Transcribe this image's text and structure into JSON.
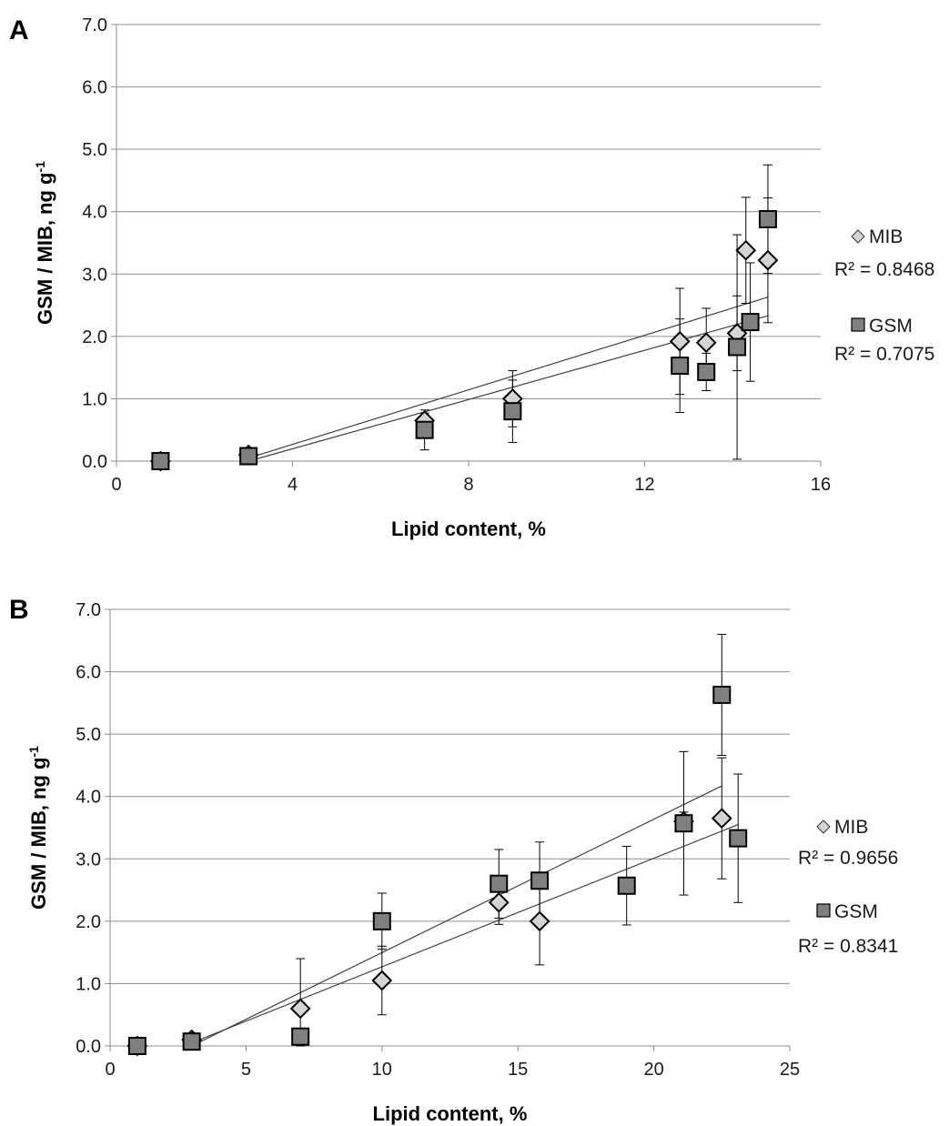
{
  "chart_data": [
    {
      "type": "scatter",
      "panel_label": "A",
      "xlabel": "Lipid content, %",
      "ylabel_main": "GSM / MIB, ng g",
      "ylabel_sup": "-1",
      "xlim": [
        0,
        16
      ],
      "ylim": [
        0,
        7
      ],
      "x_ticks": [
        0,
        4,
        8,
        12,
        16
      ],
      "x_tick_labels": [
        "0",
        "4",
        "8",
        "12",
        "16"
      ],
      "y_ticks": [
        0,
        1,
        2,
        3,
        4,
        5,
        6,
        7
      ],
      "y_tick_labels": [
        "0.0",
        "1.0",
        "2.0",
        "3.0",
        "4.0",
        "5.0",
        "6.0",
        "7.0"
      ],
      "grid": "horizontal",
      "legend_position": "right",
      "series": [
        {
          "name": "MIB",
          "marker": "diamond",
          "color": "#d4d4d4",
          "r2_label": "R² = 0.8468",
          "trendline_x": [
            3,
            14.8
          ],
          "trendline_y": [
            0.05,
            2.63
          ],
          "x": [
            1,
            3,
            7,
            9,
            12.8,
            13.4,
            14.1,
            14.3,
            14.8
          ],
          "y": [
            0,
            0.1,
            0.65,
            1.0,
            1.92,
            1.9,
            2.05,
            3.38,
            3.22
          ],
          "err": [
            0.05,
            0.08,
            0.12,
            0.45,
            0.85,
            0.55,
            0.6,
            0.85,
            1.0
          ]
        },
        {
          "name": "GSM",
          "marker": "square",
          "color": "#7f7f7f",
          "r2_label": "R² = 0.7075",
          "trendline_x": [
            3,
            14.8
          ],
          "trendline_y": [
            0.0,
            2.33
          ],
          "x": [
            1,
            3,
            7,
            9,
            12.8,
            13.4,
            14.1,
            14.4,
            14.8
          ],
          "y": [
            0,
            0.08,
            0.5,
            0.8,
            1.53,
            1.43,
            1.83,
            2.23,
            3.88
          ],
          "err": [
            0.05,
            0.1,
            0.32,
            0.5,
            0.75,
            0.3,
            1.8,
            0.95,
            0.87
          ]
        }
      ]
    },
    {
      "type": "scatter",
      "panel_label": "B",
      "xlabel": "Lipid content, %",
      "ylabel_main": "GSM / MIB, ng g",
      "ylabel_sup": "-1",
      "xlim": [
        0,
        25
      ],
      "ylim": [
        0,
        7
      ],
      "x_ticks": [
        0,
        5,
        10,
        15,
        20,
        25
      ],
      "x_tick_labels": [
        "0",
        "5",
        "10",
        "15",
        "20",
        "25"
      ],
      "y_ticks": [
        0,
        1,
        2,
        3,
        4,
        5,
        6,
        7
      ],
      "y_tick_labels": [
        "0.0",
        "1.0",
        "2.0",
        "3.0",
        "4.0",
        "5.0",
        "6.0",
        "7.0"
      ],
      "grid": "horizontal",
      "legend_position": "right",
      "series": [
        {
          "name": "MIB",
          "marker": "diamond",
          "color": "#d4d4d4",
          "r2_label": "R² = 0.9656",
          "trendline_x": [
            3,
            23.1
          ],
          "trendline_y": [
            0.05,
            3.55
          ],
          "x": [
            1,
            3,
            7,
            10,
            14.3,
            15.8,
            21.1,
            22.5
          ],
          "y": [
            0,
            0.1,
            0.6,
            1.05,
            2.3,
            2.0,
            3.6,
            3.65
          ],
          "err": [
            0.05,
            0.08,
            0.8,
            0.55,
            0.35,
            0.7,
            0.15,
            0.97
          ]
        },
        {
          "name": "GSM",
          "marker": "square",
          "color": "#7f7f7f",
          "r2_label": "R² = 0.8341",
          "trendline_x": [
            3,
            22.5
          ],
          "trendline_y": [
            0.0,
            4.17
          ],
          "x": [
            1,
            3,
            7,
            10,
            14.3,
            15.8,
            19,
            21.1,
            22.5,
            23.1
          ],
          "y": [
            0,
            0.07,
            0.15,
            2.0,
            2.6,
            2.65,
            2.57,
            3.57,
            5.63,
            3.33
          ],
          "err": [
            0.05,
            0.08,
            0.1,
            0.45,
            0.55,
            0.62,
            0.63,
            1.15,
            0.97,
            1.03
          ]
        }
      ]
    }
  ]
}
